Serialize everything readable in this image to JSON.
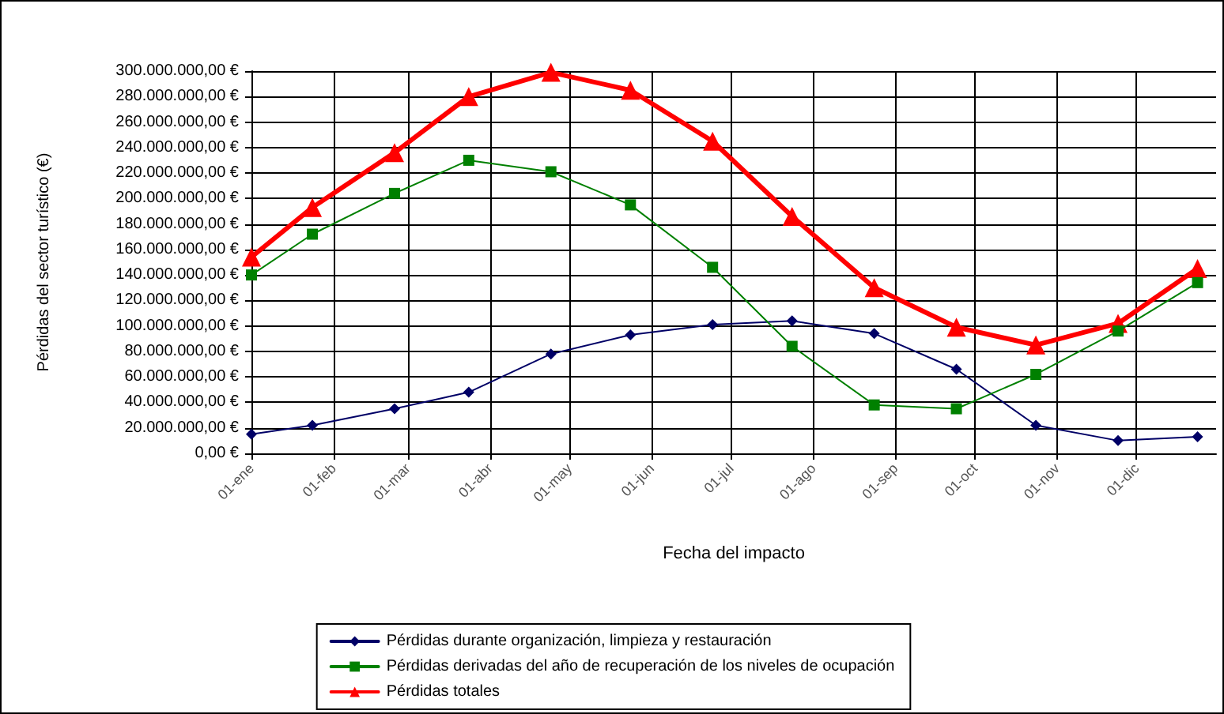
{
  "chart_data": {
    "type": "line",
    "xlabel": "Fecha del impacto",
    "ylabel": "Pérdidas del sector turístico (€)",
    "x": [
      "--01-01",
      "--01-24",
      "--02-24",
      "--03-24",
      "--04-24",
      "--05-24",
      "--06-24",
      "--07-24",
      "--08-24",
      "--09-24",
      "--10-24",
      "--11-24",
      "--12-24"
    ],
    "series": [
      {
        "name": "Pérdidas durante organización, limpieza y restauración",
        "color": "#000066",
        "marker": "diamond",
        "values": [
          15000000,
          22000000,
          35000000,
          48000000,
          78000000,
          93000000,
          101000000,
          104000000,
          94000000,
          66000000,
          22000000,
          10000000,
          13000000
        ]
      },
      {
        "name": "Pérdidas derivadas del año de recuperación de los niveles de ocupación",
        "color": "#008000",
        "marker": "square",
        "values": [
          140000000,
          172000000,
          204000000,
          230000000,
          221000000,
          195000000,
          146000000,
          84000000,
          38000000,
          35000000,
          62000000,
          96000000,
          134000000
        ]
      },
      {
        "name": "Pérdidas totales",
        "color": "#ff0000",
        "marker": "triangle",
        "values": [
          154000000,
          193000000,
          236000000,
          280000000,
          299000000,
          285000000,
          245000000,
          186000000,
          130000000,
          99000000,
          85000000,
          102000000,
          145000000
        ]
      }
    ],
    "xlim": [
      "--01-01",
      "--12-31"
    ],
    "xticks": [
      {
        "value": "--01-01",
        "label": "01-ene"
      },
      {
        "value": "--02-01",
        "label": "01-feb"
      },
      {
        "value": "--03-01",
        "label": "01-mar"
      },
      {
        "value": "--04-01",
        "label": "01-abr"
      },
      {
        "value": "--05-01",
        "label": "01-may"
      },
      {
        "value": "--06-01",
        "label": "01-jun"
      },
      {
        "value": "--07-01",
        "label": "01-jul"
      },
      {
        "value": "--08-01",
        "label": "01-ago"
      },
      {
        "value": "--09-01",
        "label": "01-sep"
      },
      {
        "value": "--10-01",
        "label": "01-oct"
      },
      {
        "value": "--11-01",
        "label": "01-nov"
      },
      {
        "value": "--12-01",
        "label": "01-dic"
      }
    ],
    "ylim": [
      0,
      300000000
    ],
    "yticks": [
      {
        "value": 0,
        "label": "0,00 €"
      },
      {
        "value": 20000000,
        "label": "20.000.000,00 €"
      },
      {
        "value": 40000000,
        "label": "40.000.000,00 €"
      },
      {
        "value": 60000000,
        "label": "60.000.000,00 €"
      },
      {
        "value": 80000000,
        "label": "80.000.000,00 €"
      },
      {
        "value": 100000000,
        "label": "100.000.000,00 €"
      },
      {
        "value": 120000000,
        "label": "120.000.000,00 €"
      },
      {
        "value": 140000000,
        "label": "140.000.000,00 €"
      },
      {
        "value": 160000000,
        "label": "160.000.000,00 €"
      },
      {
        "value": 180000000,
        "label": "180.000.000,00 €"
      },
      {
        "value": 200000000,
        "label": "200.000.000,00 €"
      },
      {
        "value": 220000000,
        "label": "220.000.000,00 €"
      },
      {
        "value": 240000000,
        "label": "240.000.000,00 €"
      },
      {
        "value": 260000000,
        "label": "260.000.000,00 €"
      },
      {
        "value": 280000000,
        "label": "280.000.000,00 €"
      },
      {
        "value": 300000000,
        "label": "300.000.000,00 €"
      }
    ],
    "grid": true,
    "legend": "bottom",
    "line_style": "solid"
  }
}
